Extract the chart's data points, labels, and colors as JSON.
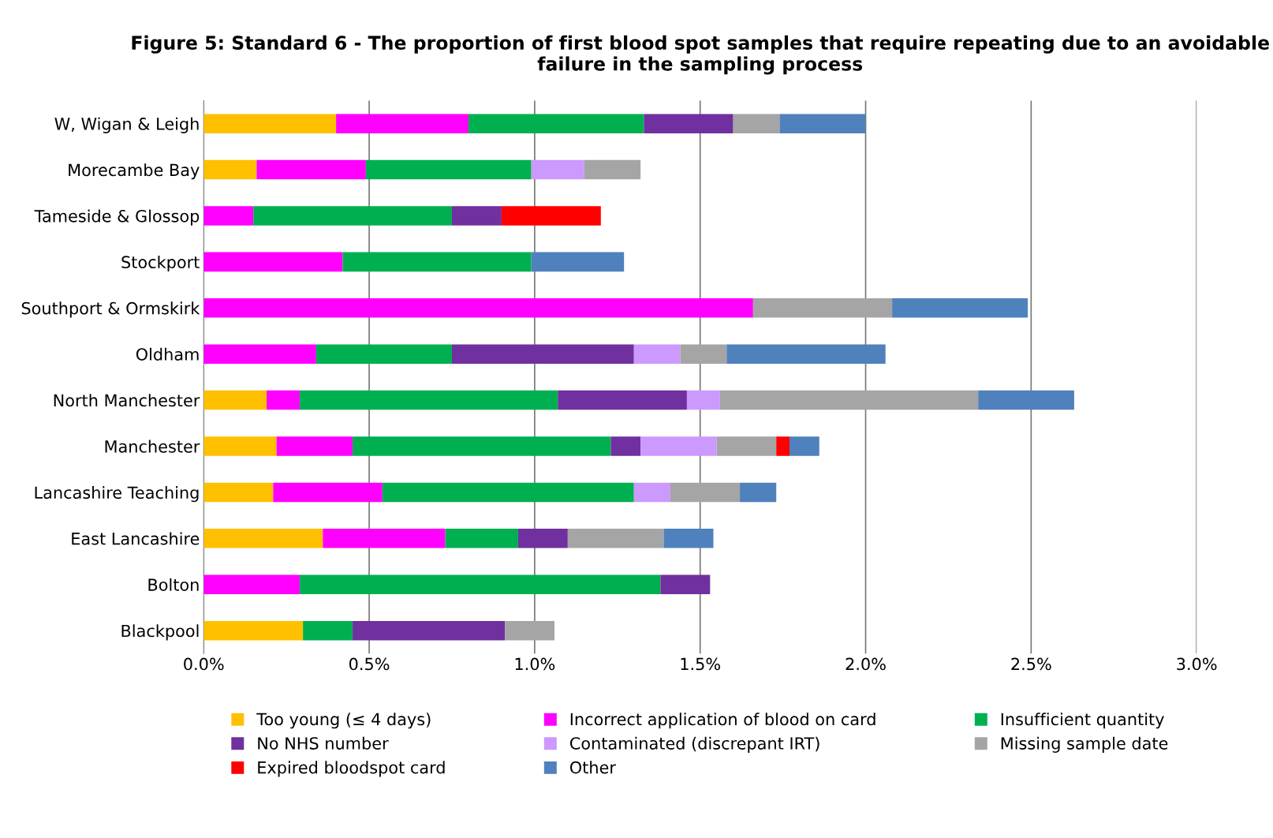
{
  "chart_data": {
    "type": "bar",
    "orientation": "horizontal",
    "stacked": true,
    "title": "Figure 5: Standard 6 - The proportion of first blood spot samples that require repeating due to an avoidable failure in the sampling process",
    "categories": [
      "W, Wigan & Leigh",
      "Morecambe Bay",
      "Tameside & Glossop",
      "Stockport",
      "Southport & Ormskirk",
      "Oldham",
      "North Manchester",
      "Manchester",
      "Lancashire Teaching",
      "East Lancashire",
      "Bolton",
      "Blackpool"
    ],
    "series": [
      {
        "name": "Too young (≤ 4 days)",
        "color": "#ffc000",
        "values": [
          0.4,
          0.16,
          null,
          null,
          null,
          null,
          0.19,
          0.22,
          0.21,
          0.36,
          null,
          0.3
        ]
      },
      {
        "name": "Incorrect application of blood on card",
        "color": "#ff00ff",
        "values": [
          0.4,
          0.33,
          0.15,
          0.42,
          1.66,
          0.34,
          0.1,
          0.23,
          0.33,
          0.37,
          0.29,
          null
        ]
      },
      {
        "name": "Insufficient quantity",
        "color": "#00b050",
        "values": [
          0.53,
          0.5,
          0.6,
          0.57,
          null,
          0.41,
          0.78,
          0.78,
          0.76,
          0.22,
          1.09,
          0.15
        ]
      },
      {
        "name": "No NHS number",
        "color": "#7030a0",
        "values": [
          0.27,
          null,
          0.15,
          null,
          null,
          0.55,
          0.39,
          0.09,
          null,
          0.15,
          0.15,
          0.46
        ]
      },
      {
        "name": "Contaminated (discrepant IRT)",
        "color": "#cc99ff",
        "values": [
          null,
          0.16,
          null,
          null,
          null,
          0.14,
          0.1,
          0.23,
          0.11,
          null,
          null,
          null
        ]
      },
      {
        "name": "Missing sample date",
        "color": "#a5a5a5",
        "values": [
          0.14,
          0.17,
          null,
          null,
          0.42,
          0.14,
          0.78,
          0.18,
          0.21,
          0.29,
          null,
          0.15
        ]
      },
      {
        "name": "Expired bloodspot card",
        "color": "#ff0000",
        "values": [
          null,
          null,
          0.3,
          null,
          null,
          null,
          null,
          0.04,
          null,
          null,
          null,
          null
        ]
      },
      {
        "name": "Other",
        "color": "#4f81bd",
        "values": [
          0.26,
          null,
          null,
          0.28,
          0.41,
          0.48,
          0.29,
          0.09,
          0.11,
          0.15,
          null,
          null
        ]
      }
    ],
    "xlim": [
      0,
      3.0
    ],
    "xticks": [
      {
        "value": 0,
        "label": "0.0%"
      },
      {
        "value": 0.5,
        "label": "0.5%"
      },
      {
        "value": 1.0,
        "label": "1.0%"
      },
      {
        "value": 1.5,
        "label": "1.5%"
      },
      {
        "value": 2.0,
        "label": "2.0%"
      },
      {
        "value": 2.5,
        "label": "2.5%"
      },
      {
        "value": 3.0,
        "label": "3.0%"
      }
    ],
    "grid": "x",
    "legend": "bottom"
  }
}
